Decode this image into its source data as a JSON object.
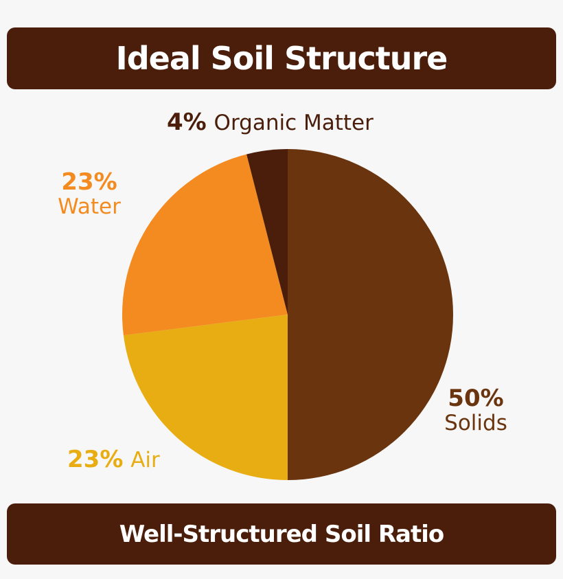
{
  "chart_data": {
    "type": "pie",
    "title": "Ideal Soil Structure",
    "subtitle": "Well-Structured Soil Ratio",
    "slices": [
      {
        "label": "Solids",
        "value": 50,
        "pct_label": "50%",
        "color": "#6a350e"
      },
      {
        "label": "Air",
        "value": 23,
        "pct_label": "23%",
        "color": "#e8ad13"
      },
      {
        "label": "Water",
        "value": 23,
        "pct_label": "23%",
        "color": "#f38b21"
      },
      {
        "label": "Organic Matter",
        "value": 4,
        "pct_label": "4%",
        "color": "#4a1e0a"
      }
    ]
  },
  "colors": {
    "banner": "#4a1e0a",
    "background": "#f7f7f7"
  }
}
